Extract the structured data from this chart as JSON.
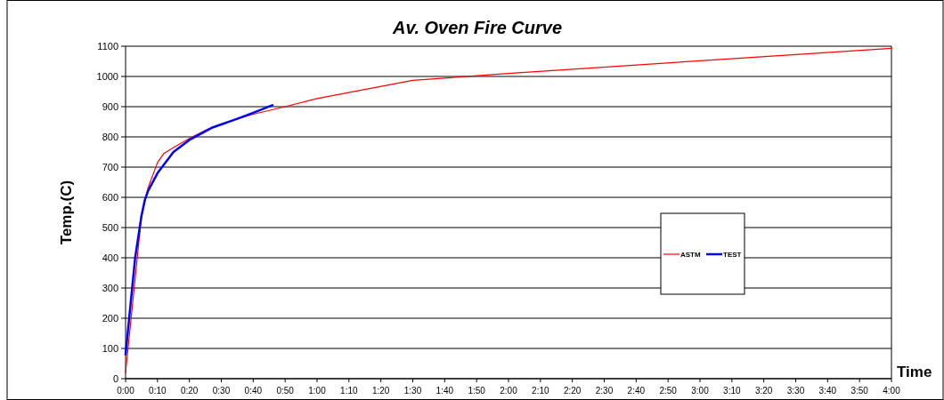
{
  "chart_data": {
    "type": "line",
    "title": "Av. Oven Fire Curve",
    "xlabel": "Time",
    "ylabel": "Temp.(C)",
    "xlim": [
      0,
      4
    ],
    "xticks": [
      {
        "value": 0,
        "label": "0:00"
      },
      {
        "value": 0.1667,
        "label": "0:10"
      },
      {
        "value": 0.3333,
        "label": "0:20"
      },
      {
        "value": 0.5,
        "label": "0:30"
      },
      {
        "value": 0.6667,
        "label": "0:40"
      },
      {
        "value": 0.8333,
        "label": "0:50"
      },
      {
        "value": 1,
        "label": "1:00"
      },
      {
        "value": 1.1667,
        "label": "1:10"
      },
      {
        "value": 1.3333,
        "label": "1:20"
      },
      {
        "value": 1.5,
        "label": "1:30"
      },
      {
        "value": 1.6667,
        "label": "1:40"
      },
      {
        "value": 1.8333,
        "label": "1:50"
      },
      {
        "value": 2,
        "label": "2:00"
      },
      {
        "value": 2.1667,
        "label": "2:10"
      },
      {
        "value": 2.3333,
        "label": "2:20"
      },
      {
        "value": 2.5,
        "label": "2:30"
      },
      {
        "value": 2.6667,
        "label": "2:40"
      },
      {
        "value": 2.8333,
        "label": "2:50"
      },
      {
        "value": 3,
        "label": "3:00"
      },
      {
        "value": 3.1667,
        "label": "3:10"
      },
      {
        "value": 3.3333,
        "label": "3:20"
      },
      {
        "value": 3.5,
        "label": "3:30"
      },
      {
        "value": 3.6667,
        "label": "3:40"
      },
      {
        "value": 3.8333,
        "label": "3:50"
      },
      {
        "value": 4,
        "label": "4:00"
      }
    ],
    "ylim": [
      0,
      1100
    ],
    "yticks": [
      0,
      100,
      200,
      300,
      400,
      500,
      600,
      700,
      800,
      900,
      1000,
      1100
    ],
    "grid": "y",
    "legend": "right",
    "marker": "none",
    "series": [
      {
        "name": "ASTM",
        "color": "#ff0000",
        "x": [
          0,
          0.0833,
          0.1167,
          0.1667,
          0.2,
          0.25,
          0.3333,
          0.4167,
          0.5,
          0.6667,
          0.8333,
          1,
          1.5,
          2,
          3,
          4
        ],
        "values": [
          20,
          538,
          630,
          715,
          745,
          765,
          795,
          822,
          843,
          875,
          900,
          927,
          987,
          1010,
          1052,
          1093
        ]
      },
      {
        "name": "TEST",
        "color": "#0000ff",
        "x": [
          0,
          0.05,
          0.0833,
          0.1,
          0.1167,
          0.1667,
          0.25,
          0.3333,
          0.45,
          0.5833,
          0.6667,
          0.7667
        ],
        "values": [
          80,
          400,
          540,
          590,
          620,
          680,
          750,
          790,
          830,
          860,
          880,
          905
        ]
      }
    ]
  }
}
